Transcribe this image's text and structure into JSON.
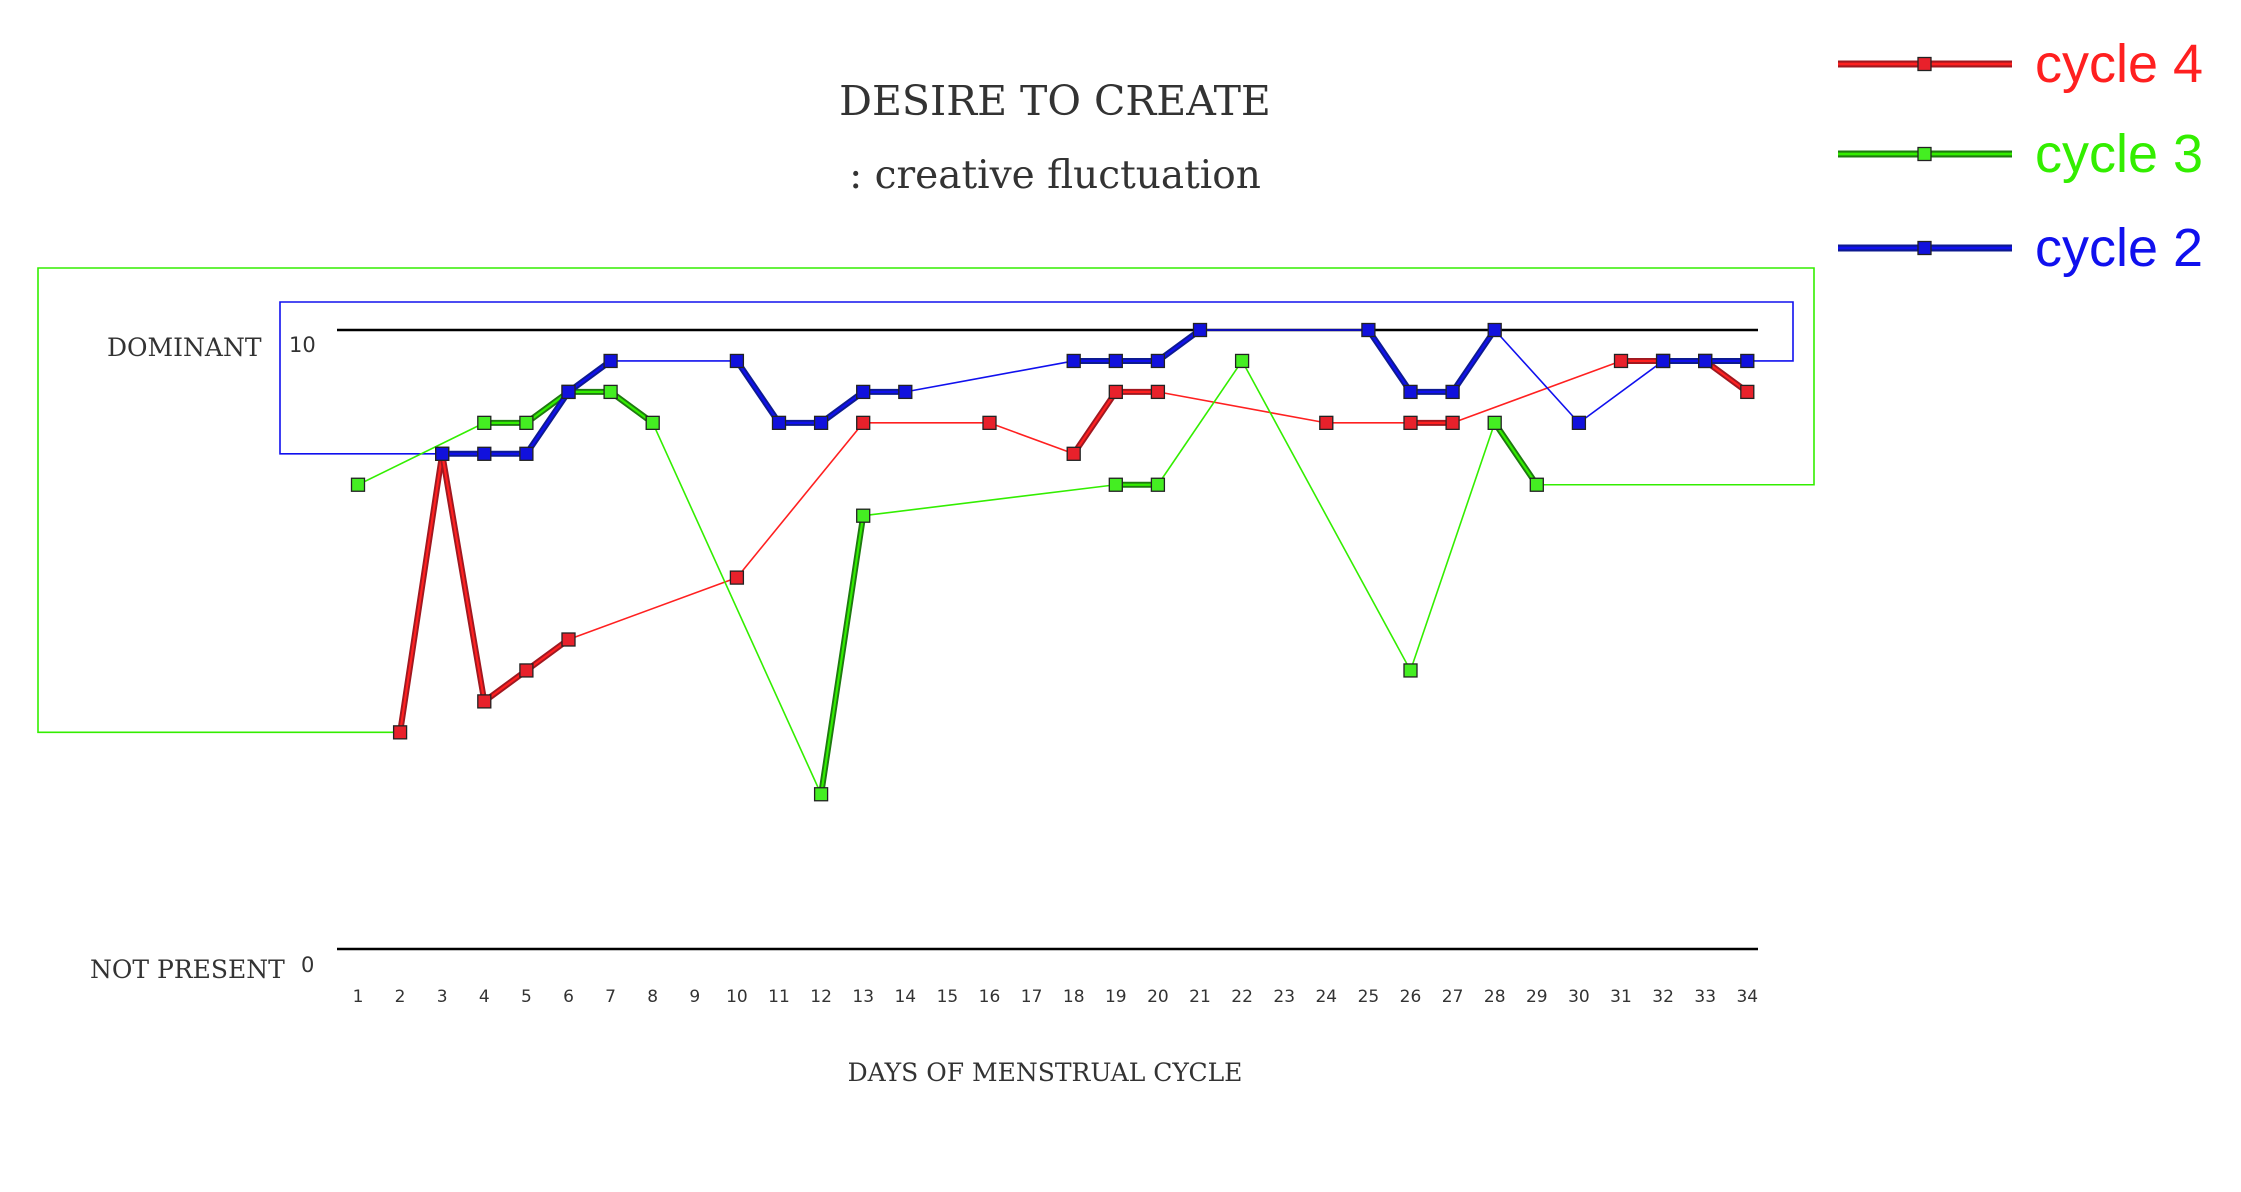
{
  "chart_data": {
    "type": "line",
    "title": "DESIRE TO CREATE",
    "subtitle": ": creative fluctuation",
    "xlabel": "DAYS OF MENSTRUAL CYCLE",
    "ylabel_top": "DOMINANT",
    "ylabel_bottom": "NOT PRESENT",
    "y_top_value": "10",
    "y_bottom_value": "0",
    "ylim": [
      0,
      10
    ],
    "x": [
      1,
      2,
      3,
      4,
      5,
      6,
      7,
      8,
      9,
      10,
      11,
      12,
      13,
      14,
      15,
      16,
      17,
      18,
      19,
      20,
      21,
      22,
      23,
      24,
      25,
      26,
      27,
      28,
      29,
      30,
      31,
      32,
      33,
      34
    ],
    "x_ticks": [
      "1",
      "2",
      "3",
      "4",
      "5",
      "6",
      "7",
      "8",
      "9",
      "10",
      "11",
      "12",
      "13",
      "14",
      "15",
      "16",
      "17",
      "18",
      "19",
      "20",
      "21",
      "22",
      "23",
      "24",
      "25",
      "26",
      "27",
      "28",
      "29",
      "30",
      "31",
      "32",
      "33",
      "34"
    ],
    "grid": false,
    "legend_position": "top-right",
    "series": [
      {
        "name": "cycle 4",
        "color": "#ff2020",
        "marker_color": "#e8212b",
        "thick_color": "#a01820",
        "points": [
          [
            2,
            3.5
          ],
          [
            3,
            8
          ],
          [
            4,
            4
          ],
          [
            5,
            4.5
          ],
          [
            6,
            5
          ],
          [
            10,
            6
          ],
          [
            13,
            8.5
          ],
          [
            16,
            8.5
          ],
          [
            18,
            8
          ],
          [
            19,
            9
          ],
          [
            20,
            9
          ],
          [
            24,
            8.5
          ],
          [
            26,
            8.5
          ],
          [
            27,
            8.5
          ],
          [
            31,
            9.5
          ],
          [
            32,
            9.5
          ],
          [
            33,
            9.5
          ],
          [
            34,
            9.0
          ]
        ]
      },
      {
        "name": "cycle 3",
        "color": "#33ee00",
        "marker_color": "#44ee22",
        "thick_color": "#1e7a10",
        "points": [
          [
            1,
            7.5
          ],
          [
            4,
            8.5
          ],
          [
            5,
            8.5
          ],
          [
            6,
            9
          ],
          [
            7,
            9
          ],
          [
            8,
            8.5
          ],
          [
            12,
            2.5
          ],
          [
            13,
            7
          ],
          [
            19,
            7.5
          ],
          [
            20,
            7.5
          ],
          [
            22,
            9.5
          ],
          [
            26,
            4.5
          ],
          [
            28,
            8.5
          ],
          [
            29,
            7.5
          ]
        ]
      },
      {
        "name": "cycle 2",
        "color": "#1010ee",
        "marker_color": "#1111dd",
        "thick_color": "#0d1a90",
        "points": [
          [
            3,
            8
          ],
          [
            4,
            8
          ],
          [
            5,
            8
          ],
          [
            6,
            9
          ],
          [
            7,
            9.5
          ],
          [
            10,
            9.5
          ],
          [
            11,
            8.5
          ],
          [
            12,
            8.5
          ],
          [
            13,
            9
          ],
          [
            14,
            9
          ],
          [
            18,
            9.5
          ],
          [
            19,
            9.5
          ],
          [
            20,
            9.5
          ],
          [
            21,
            10
          ],
          [
            25,
            10
          ],
          [
            26,
            9
          ],
          [
            27,
            9
          ],
          [
            28,
            10
          ],
          [
            30,
            8.5
          ],
          [
            32,
            9.5
          ],
          [
            33,
            9.5
          ],
          [
            34,
            9.5
          ]
        ]
      }
    ]
  }
}
